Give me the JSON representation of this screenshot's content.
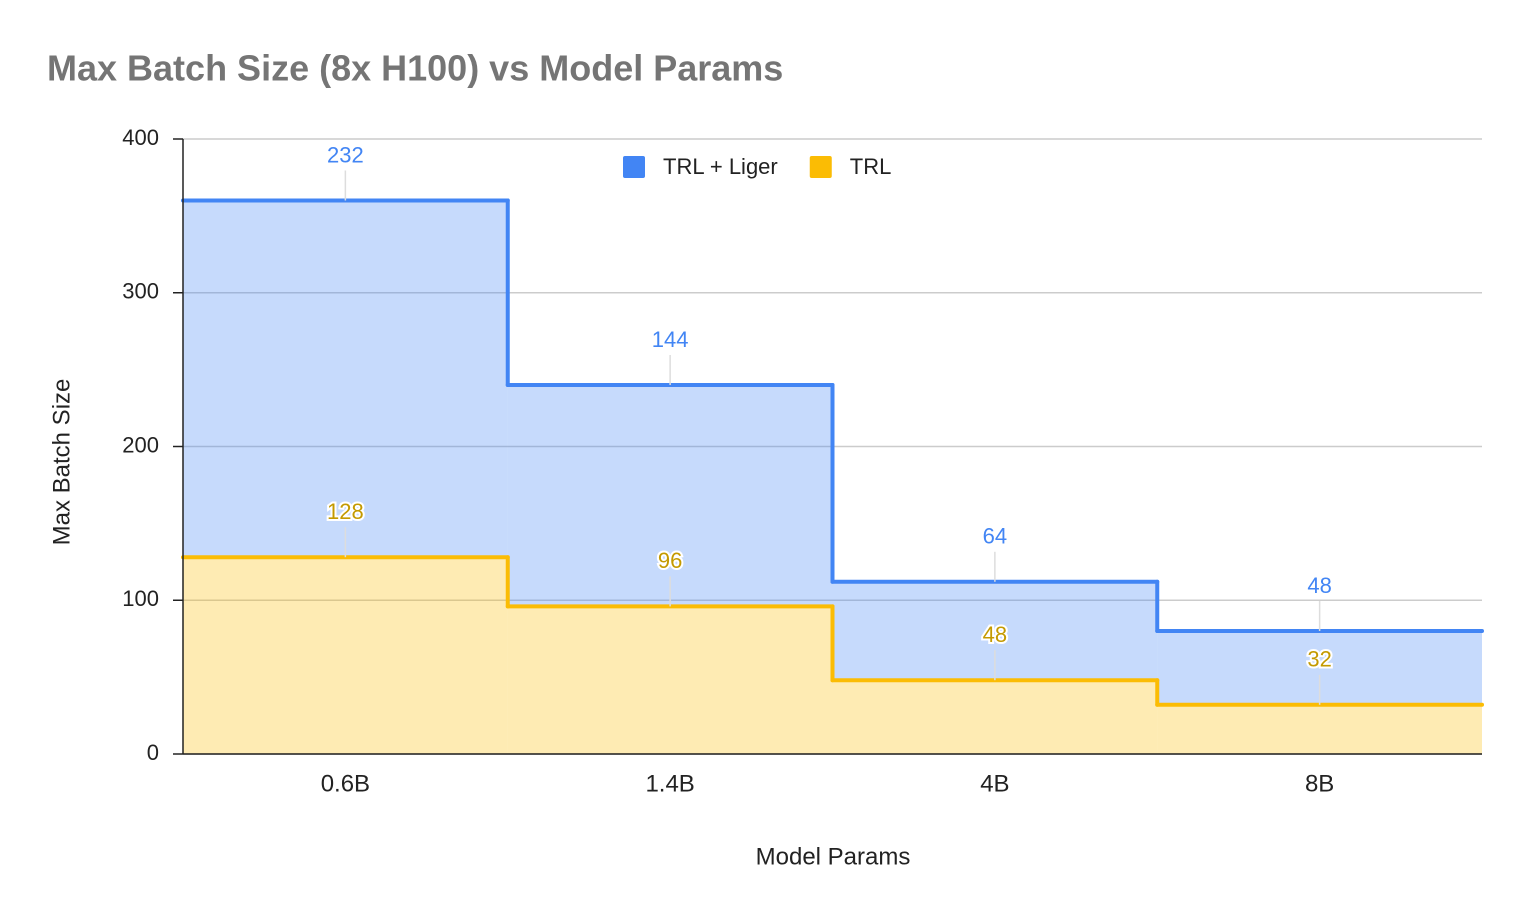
{
  "chart_data": {
    "type": "area",
    "stacked": true,
    "stepped": true,
    "title": "Max Batch Size (8x H100) vs Model Params",
    "x_label": "Model Params",
    "y_label": "Max Batch Size",
    "categories": [
      "0.6B",
      "1.4B",
      "4B",
      "8B"
    ],
    "series": [
      {
        "name": "TRL + Liger",
        "color": "#4285f4",
        "values": [
          232,
          144,
          64,
          48
        ]
      },
      {
        "name": "TRL",
        "color": "#fbbc04",
        "values": [
          128,
          96,
          48,
          32
        ]
      }
    ],
    "ylim": [
      0,
      400
    ],
    "yticks": [
      0,
      100,
      200,
      300,
      400
    ],
    "grid": true,
    "legend": "top"
  }
}
